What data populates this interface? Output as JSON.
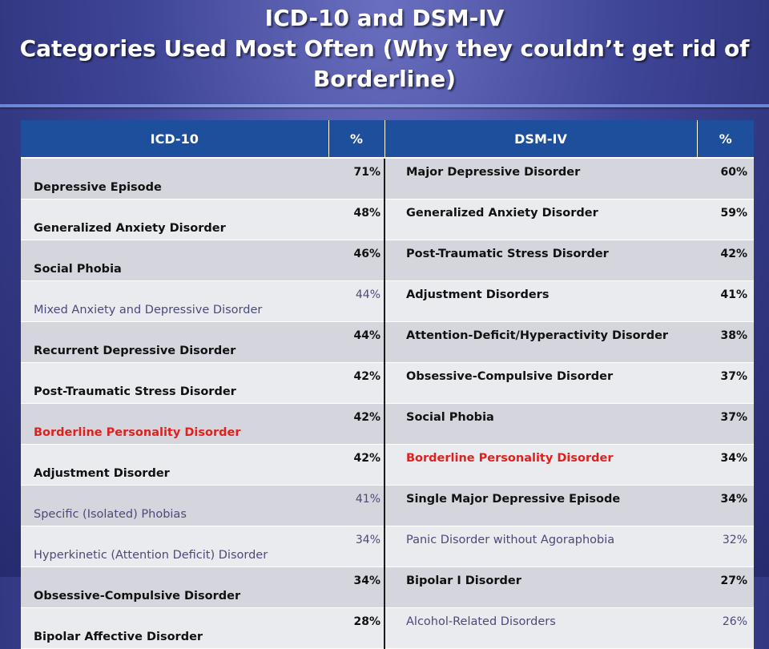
{
  "title": {
    "line1": "ICD-10 and DSM-IV",
    "line2": "Categories Used Most Often (Why they couldn’t get rid of",
    "line3": "Borderline)"
  },
  "colors": {
    "header_bg": "#1d4f9c",
    "highlight": "#e0201c",
    "muted_text": "#4a4a78"
  },
  "table": {
    "headers": [
      "ICD-10",
      "%",
      "DSM-IV",
      "%"
    ],
    "rows": [
      {
        "icd": "Depressive Episode",
        "icd_pct": "71%",
        "dsm": "Major Depressive Disorder",
        "dsm_pct": "60%"
      },
      {
        "icd": "Generalized Anxiety Disorder",
        "icd_pct": "48%",
        "dsm": "Generalized Anxiety Disorder",
        "dsm_pct": "59%"
      },
      {
        "icd": "Social Phobia",
        "icd_pct": "46%",
        "dsm": "Post-Traumatic Stress Disorder",
        "dsm_pct": "42%"
      },
      {
        "icd": "Mixed Anxiety and Depressive Disorder",
        "icd_pct": "44%",
        "dsm": "Adjustment Disorders",
        "dsm_pct": "41%"
      },
      {
        "icd": "Recurrent Depressive Disorder",
        "icd_pct": "44%",
        "dsm": "Attention-Deficit/Hyperactivity Disorder",
        "dsm_pct": "38%"
      },
      {
        "icd": "Post-Traumatic Stress Disorder",
        "icd_pct": "42%",
        "dsm": "Obsessive-Compulsive Disorder",
        "dsm_pct": "37%"
      },
      {
        "icd": "Borderline Personality Disorder",
        "icd_pct": "42%",
        "dsm": "Social Phobia",
        "dsm_pct": "37%"
      },
      {
        "icd": "Adjustment Disorder",
        "icd_pct": "42%",
        "dsm": "Borderline Personality Disorder",
        "dsm_pct": "34%"
      },
      {
        "icd": "Specific (Isolated) Phobias",
        "icd_pct": "41%",
        "dsm": "Single Major Depressive Episode",
        "dsm_pct": "34%"
      },
      {
        "icd": "Hyperkinetic (Attention Deficit) Disorder",
        "icd_pct": "34%",
        "dsm": "Panic Disorder without Agoraphobia",
        "dsm_pct": "32%"
      },
      {
        "icd": "Obsessive-Compulsive Disorder",
        "icd_pct": "34%",
        "dsm": "Bipolar I Disorder",
        "dsm_pct": "27%"
      },
      {
        "icd": "Bipolar Affective Disorder",
        "icd_pct": "28%",
        "dsm": "Alcohol-Related Disorders",
        "dsm_pct": "26%"
      }
    ]
  }
}
